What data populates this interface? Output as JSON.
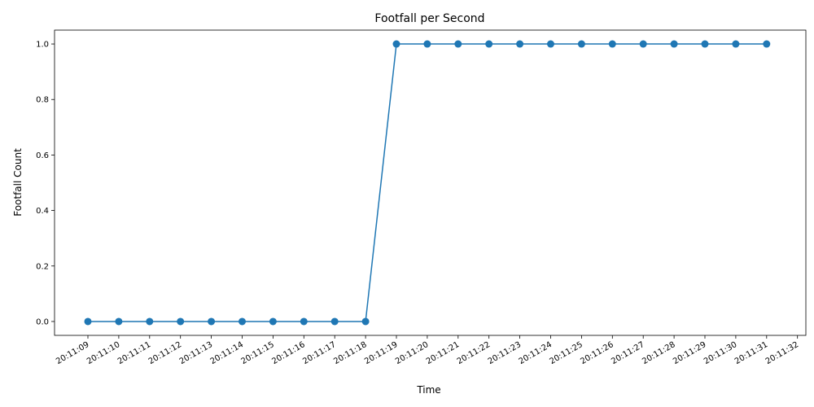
{
  "chart_data": {
    "type": "line",
    "title": "Footfall per Second",
    "xlabel": "Time",
    "ylabel": "Footfall Count",
    "x_ticks": [
      "20:11:09",
      "20:11:10",
      "20:11:11",
      "20:11:12",
      "20:11:13",
      "20:11:14",
      "20:11:15",
      "20:11:16",
      "20:11:17",
      "20:11:18",
      "20:11:19",
      "20:11:20",
      "20:11:21",
      "20:11:22",
      "20:11:23",
      "20:11:24",
      "20:11:25",
      "20:11:26",
      "20:11:27",
      "20:11:28",
      "20:11:29",
      "20:11:30",
      "20:11:31",
      "20:11:32"
    ],
    "y_ticks": [
      "0.0",
      "0.2",
      "0.4",
      "0.6",
      "0.8",
      "1.0"
    ],
    "ylim": [
      -0.05,
      1.05
    ],
    "grid": false,
    "marker": "circle",
    "color": "#1f77b4",
    "series": [
      {
        "x": [
          "20:11:09",
          "20:11:10",
          "20:11:11",
          "20:11:12",
          "20:11:13",
          "20:11:14",
          "20:11:15",
          "20:11:16",
          "20:11:17",
          "20:11:18",
          "20:11:19",
          "20:11:20",
          "20:11:21",
          "20:11:22",
          "20:11:23",
          "20:11:24",
          "20:11:25",
          "20:11:26",
          "20:11:27",
          "20:11:28",
          "20:11:29",
          "20:11:30",
          "20:11:31"
        ],
        "values": [
          0,
          0,
          0,
          0,
          0,
          0,
          0,
          0,
          0,
          0,
          1,
          1,
          1,
          1,
          1,
          1,
          1,
          1,
          1,
          1,
          1,
          1,
          1
        ]
      }
    ]
  }
}
